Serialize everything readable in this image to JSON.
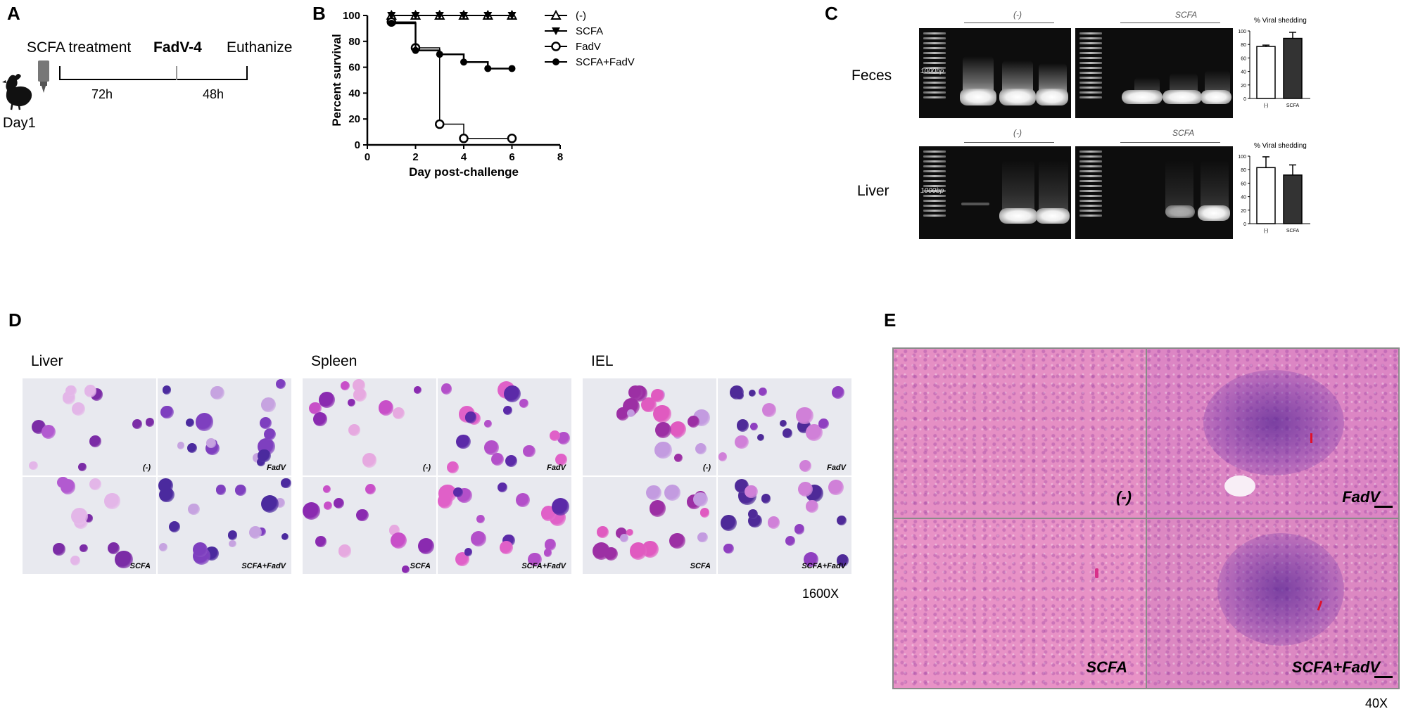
{
  "panels": {
    "a": {
      "letter": "A",
      "labels": {
        "treatment": "SCFA treatment",
        "virus": "FadV-4",
        "euthanize": "Euthanize",
        "interval1": "72h",
        "interval2": "48h",
        "day": "Day1"
      },
      "icons": [
        "chicken-icon",
        "dropper-bottle-icon"
      ]
    },
    "b": {
      "letter": "B"
    },
    "c": {
      "letter": "C",
      "rows": [
        {
          "label": "Feces",
          "groups": [
            "(-)",
            "SCFA"
          ],
          "ladder_label": "1000bp",
          "bar_title": "% Viral shedding",
          "bar_categories": [
            "(-)",
            "SCFA"
          ]
        },
        {
          "label": "Liver",
          "groups": [
            "(-)",
            "SCFA"
          ],
          "ladder_label": "1000bp",
          "bar_title": "% Viral shedding",
          "bar_categories": [
            "(-)",
            "SCFA"
          ]
        }
      ],
      "bar_colors": [
        "#ffffff",
        "#333333"
      ]
    },
    "d": {
      "letter": "D",
      "tissues": [
        "Liver",
        "Spleen",
        "IEL"
      ],
      "conditions_top": [
        "(-)",
        "FadV"
      ],
      "conditions_bottom": [
        "SCFA",
        "SCFA+FadV"
      ],
      "magnification": "1600X"
    },
    "e": {
      "letter": "E",
      "conditions": [
        "(-)",
        "FadV",
        "SCFA",
        "SCFA+FadV"
      ],
      "magnification": "40X"
    }
  },
  "chart_data": [
    {
      "type": "line",
      "subtype": "kaplan-meier-step",
      "xlabel": "Day post-challenge",
      "ylabel": "Percent survival",
      "xlim": [
        0,
        8
      ],
      "ylim": [
        0,
        100
      ],
      "xticks": [
        0,
        2,
        4,
        6,
        8
      ],
      "yticks": [
        0,
        20,
        40,
        60,
        80,
        100
      ],
      "legend_position": "right",
      "series": [
        {
          "name": "(-)",
          "marker": "open-triangle-up",
          "x": [
            1,
            2,
            3,
            4,
            5,
            6
          ],
          "y": [
            100,
            100,
            100,
            100,
            100,
            100
          ]
        },
        {
          "name": "SCFA",
          "marker": "filled-triangle-down",
          "x": [
            1,
            2,
            3,
            4,
            5,
            6
          ],
          "y": [
            100,
            100,
            100,
            100,
            100,
            100
          ]
        },
        {
          "name": "FadV",
          "marker": "open-circle",
          "x": [
            1,
            2,
            3,
            4,
            6
          ],
          "y": [
            95,
            75,
            16,
            5,
            5
          ]
        },
        {
          "name": "SCFA+FadV",
          "marker": "filled-circle",
          "x": [
            1,
            2,
            3,
            4,
            5,
            6
          ],
          "y": [
            94,
            73,
            70,
            64,
            59,
            59
          ]
        }
      ]
    },
    {
      "type": "bar",
      "title": "% Viral shedding",
      "categories": [
        "(-)",
        "SCFA"
      ],
      "values": [
        77,
        89
      ],
      "errors": [
        2,
        9
      ],
      "ylim": [
        0,
        100
      ],
      "yticks": [
        0,
        20,
        40,
        60,
        80,
        100
      ]
    },
    {
      "type": "bar",
      "title": "% Viral shedding",
      "categories": [
        "(-)",
        "SCFA"
      ],
      "values": [
        83,
        72
      ],
      "errors": [
        16,
        15
      ],
      "ylim": [
        0,
        100
      ],
      "yticks": [
        0,
        20,
        40,
        60,
        80,
        100
      ]
    }
  ]
}
